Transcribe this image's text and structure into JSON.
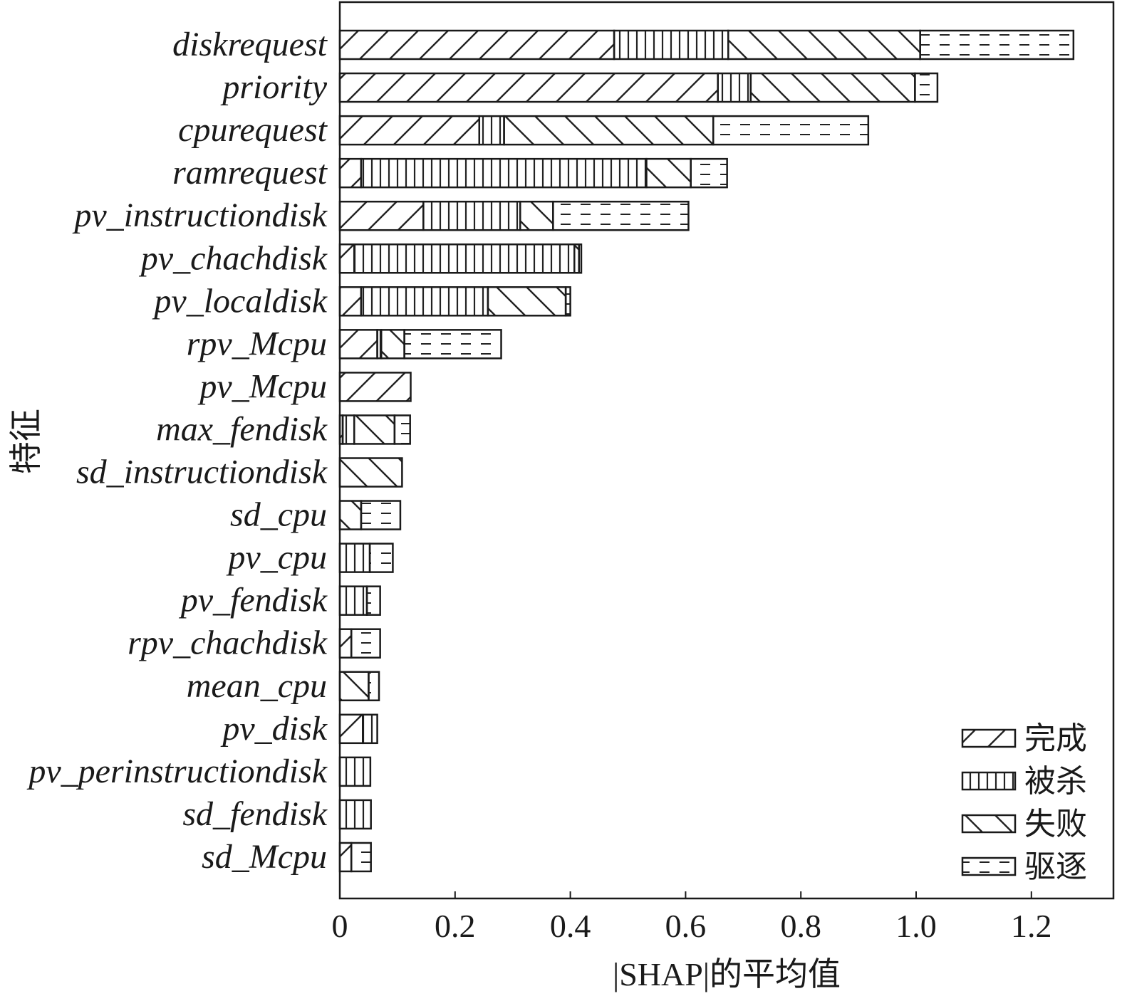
{
  "chart_data": {
    "type": "bar",
    "orientation": "horizontal",
    "stacked": true,
    "xlabel": "|SHAP|的平均值",
    "ylabel": "特征",
    "xlim": [
      0,
      1.33
    ],
    "xticks": [
      0,
      0.2,
      0.4,
      0.6,
      0.8,
      1.0,
      1.2
    ],
    "xtick_labels": [
      "0",
      "0.2",
      "0.4",
      "0.6",
      "0.8",
      "1.0",
      "1.2"
    ],
    "legend_position": "bottom-right",
    "grid": false,
    "categories": [
      "diskrequest",
      "priority",
      "cpurequest",
      "ramrequest",
      "pv_instructiondisk",
      "pv_chachdisk",
      "pv_localdisk",
      "rpv_Mcpu",
      "pv_Mcpu",
      "max_fendisk",
      "sd_instructiondisk",
      "sd_cpu",
      "pv_cpu",
      "pv_fendisk",
      "rpv_chachdisk",
      "mean_cpu",
      "pv_disk",
      "pv_perinstructiondisk",
      "sd_fendisk",
      "sd_Mcpu"
    ],
    "series": [
      {
        "name": "完成",
        "pattern": "forward-diagonal",
        "values": [
          0.476,
          0.656,
          0.242,
          0.037,
          0.145,
          0.025,
          0.037,
          0.065,
          0.123,
          0.005,
          0.0,
          0.0,
          0.0,
          0.0,
          0.02,
          0.0,
          0.04,
          0.0,
          0.0,
          0.02
        ]
      },
      {
        "name": "被杀",
        "pattern": "vertical",
        "values": [
          0.198,
          0.057,
          0.043,
          0.495,
          0.168,
          0.382,
          0.22,
          0.007,
          0.0,
          0.02,
          0.0,
          0.0,
          0.052,
          0.047,
          0.0,
          0.0,
          0.025,
          0.053,
          0.054,
          0.0
        ]
      },
      {
        "name": "失败",
        "pattern": "backward-diagonal",
        "values": [
          0.333,
          0.285,
          0.363,
          0.077,
          0.057,
          0.008,
          0.135,
          0.04,
          0.0,
          0.07,
          0.108,
          0.037,
          0.0,
          0.0,
          0.0,
          0.05,
          0.0,
          0.0,
          0.0,
          0.0
        ]
      },
      {
        "name": "驱逐",
        "pattern": "dashed-horizontal",
        "values": [
          0.266,
          0.039,
          0.269,
          0.063,
          0.235,
          0.004,
          0.008,
          0.168,
          0.0,
          0.027,
          0.0,
          0.068,
          0.04,
          0.023,
          0.05,
          0.018,
          0.0,
          0.0,
          0.0,
          0.034
        ]
      }
    ]
  }
}
